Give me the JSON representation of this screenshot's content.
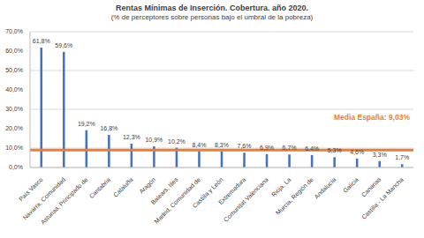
{
  "chart_data": {
    "type": "bar",
    "title": "Rentas Mínimas de Inserción. Cobertura. año 2020.",
    "subtitle": "(% de perceptores sobre personas bajo el umbral de la pobreza)",
    "categories": [
      "País Vasco",
      "Navarra, Comunidad",
      "Asturias, Principado de",
      "Cantabria",
      "Cataluña",
      "Aragón",
      "Balears, Illes",
      "Madrid, Comunidad de",
      "Castilla y León",
      "Extremadura",
      "Comunitat Valenciana",
      "Rioja, La",
      "Murcia, Región de",
      "Andalucía",
      "Galicia",
      "Canarias",
      "Castilla - La Mancha"
    ],
    "values": [
      61.8,
      59.6,
      19.2,
      16.8,
      12.3,
      10.9,
      10.2,
      8.4,
      8.3,
      7.6,
      6.9,
      6.7,
      6.4,
      5.3,
      4.6,
      3.3,
      1.7
    ],
    "value_labels": [
      "61,8%",
      "59,6%",
      "19,2%",
      "16,8%",
      "12,3%",
      "10,9%",
      "10,2%",
      "8,4%",
      "8,3%",
      "7,6%",
      "6,9%",
      "6,7%",
      "6,4%",
      "5,3%",
      "4,6%",
      "3,3%",
      "1,7%"
    ],
    "color": "#4472c4",
    "data_labels": true,
    "average": 9.03,
    "average_label": "Media España: 9,03%",
    "ylim": [
      0,
      70
    ],
    "yticks": [
      {
        "value": 0,
        "label": "0,0%"
      },
      {
        "value": 10,
        "label": "10,0%"
      },
      {
        "value": 20,
        "label": "20,0%"
      },
      {
        "value": 30,
        "label": "30,0%"
      },
      {
        "value": 40,
        "label": "40,0%"
      },
      {
        "value": 50,
        "label": "50,0%"
      },
      {
        "value": 60,
        "label": "60,0%"
      },
      {
        "value": 70,
        "label": "70,0%"
      }
    ],
    "grid": true
  }
}
